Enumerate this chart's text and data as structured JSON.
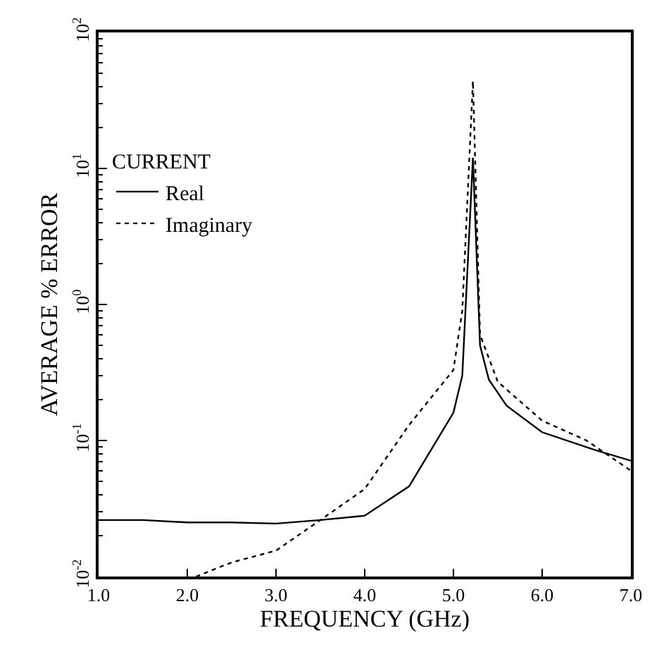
{
  "chart_data": {
    "type": "line",
    "xlabel": "FREQUENCY (GHz)",
    "ylabel": "AVERAGE % ERROR",
    "legend_title": "CURRENT",
    "legend": "top left",
    "log": "y",
    "marker": "none",
    "xlim": [
      1.0,
      7.0
    ],
    "ylim": [
      0.01,
      100
    ],
    "xticks": [
      {
        "value": 1,
        "label": "1.0"
      },
      {
        "value": 2,
        "label": "2.0"
      },
      {
        "value": 3,
        "label": "3.0"
      },
      {
        "value": 4,
        "label": "4.0"
      },
      {
        "value": 5,
        "label": "5.0"
      },
      {
        "value": 6,
        "label": "6.0"
      },
      {
        "value": 7,
        "label": "7.0"
      }
    ],
    "yticks": [
      {
        "value": 0.01,
        "label": "10$^{-2}$"
      },
      {
        "value": 0.1,
        "label": "10$^{-1}$"
      },
      {
        "value": 1,
        "label": "10$^{0}$"
      },
      {
        "value": 10,
        "label": "10$^{1}$"
      },
      {
        "value": 100,
        "label": "10$^{2}$"
      }
    ],
    "series": [
      {
        "name": "Real",
        "color": "#000000",
        "line_style": "solid",
        "x": [
          1.0,
          1.5,
          2.0,
          2.5,
          3.0,
          3.5,
          4.0,
          4.5,
          5.0,
          5.1,
          5.22,
          5.3,
          5.4,
          5.6,
          6.0,
          6.6,
          7.0
        ],
        "values": [
          0.026,
          0.026,
          0.025,
          0.025,
          0.0245,
          0.026,
          0.028,
          0.046,
          0.16,
          0.3,
          12,
          0.5,
          0.28,
          0.18,
          0.115,
          0.085,
          0.071
        ]
      },
      {
        "name": "Imaginary",
        "color": "#000000",
        "line_style": "dotted",
        "x": [
          2.1,
          2.5,
          3.0,
          3.5,
          4.0,
          4.5,
          5.0,
          5.1,
          5.22,
          5.3,
          5.5,
          6.0,
          6.5,
          7.0
        ],
        "values": [
          0.01,
          0.0127,
          0.0155,
          0.026,
          0.044,
          0.13,
          0.33,
          0.9,
          44,
          0.6,
          0.27,
          0.14,
          0.1,
          0.06
        ]
      }
    ]
  }
}
